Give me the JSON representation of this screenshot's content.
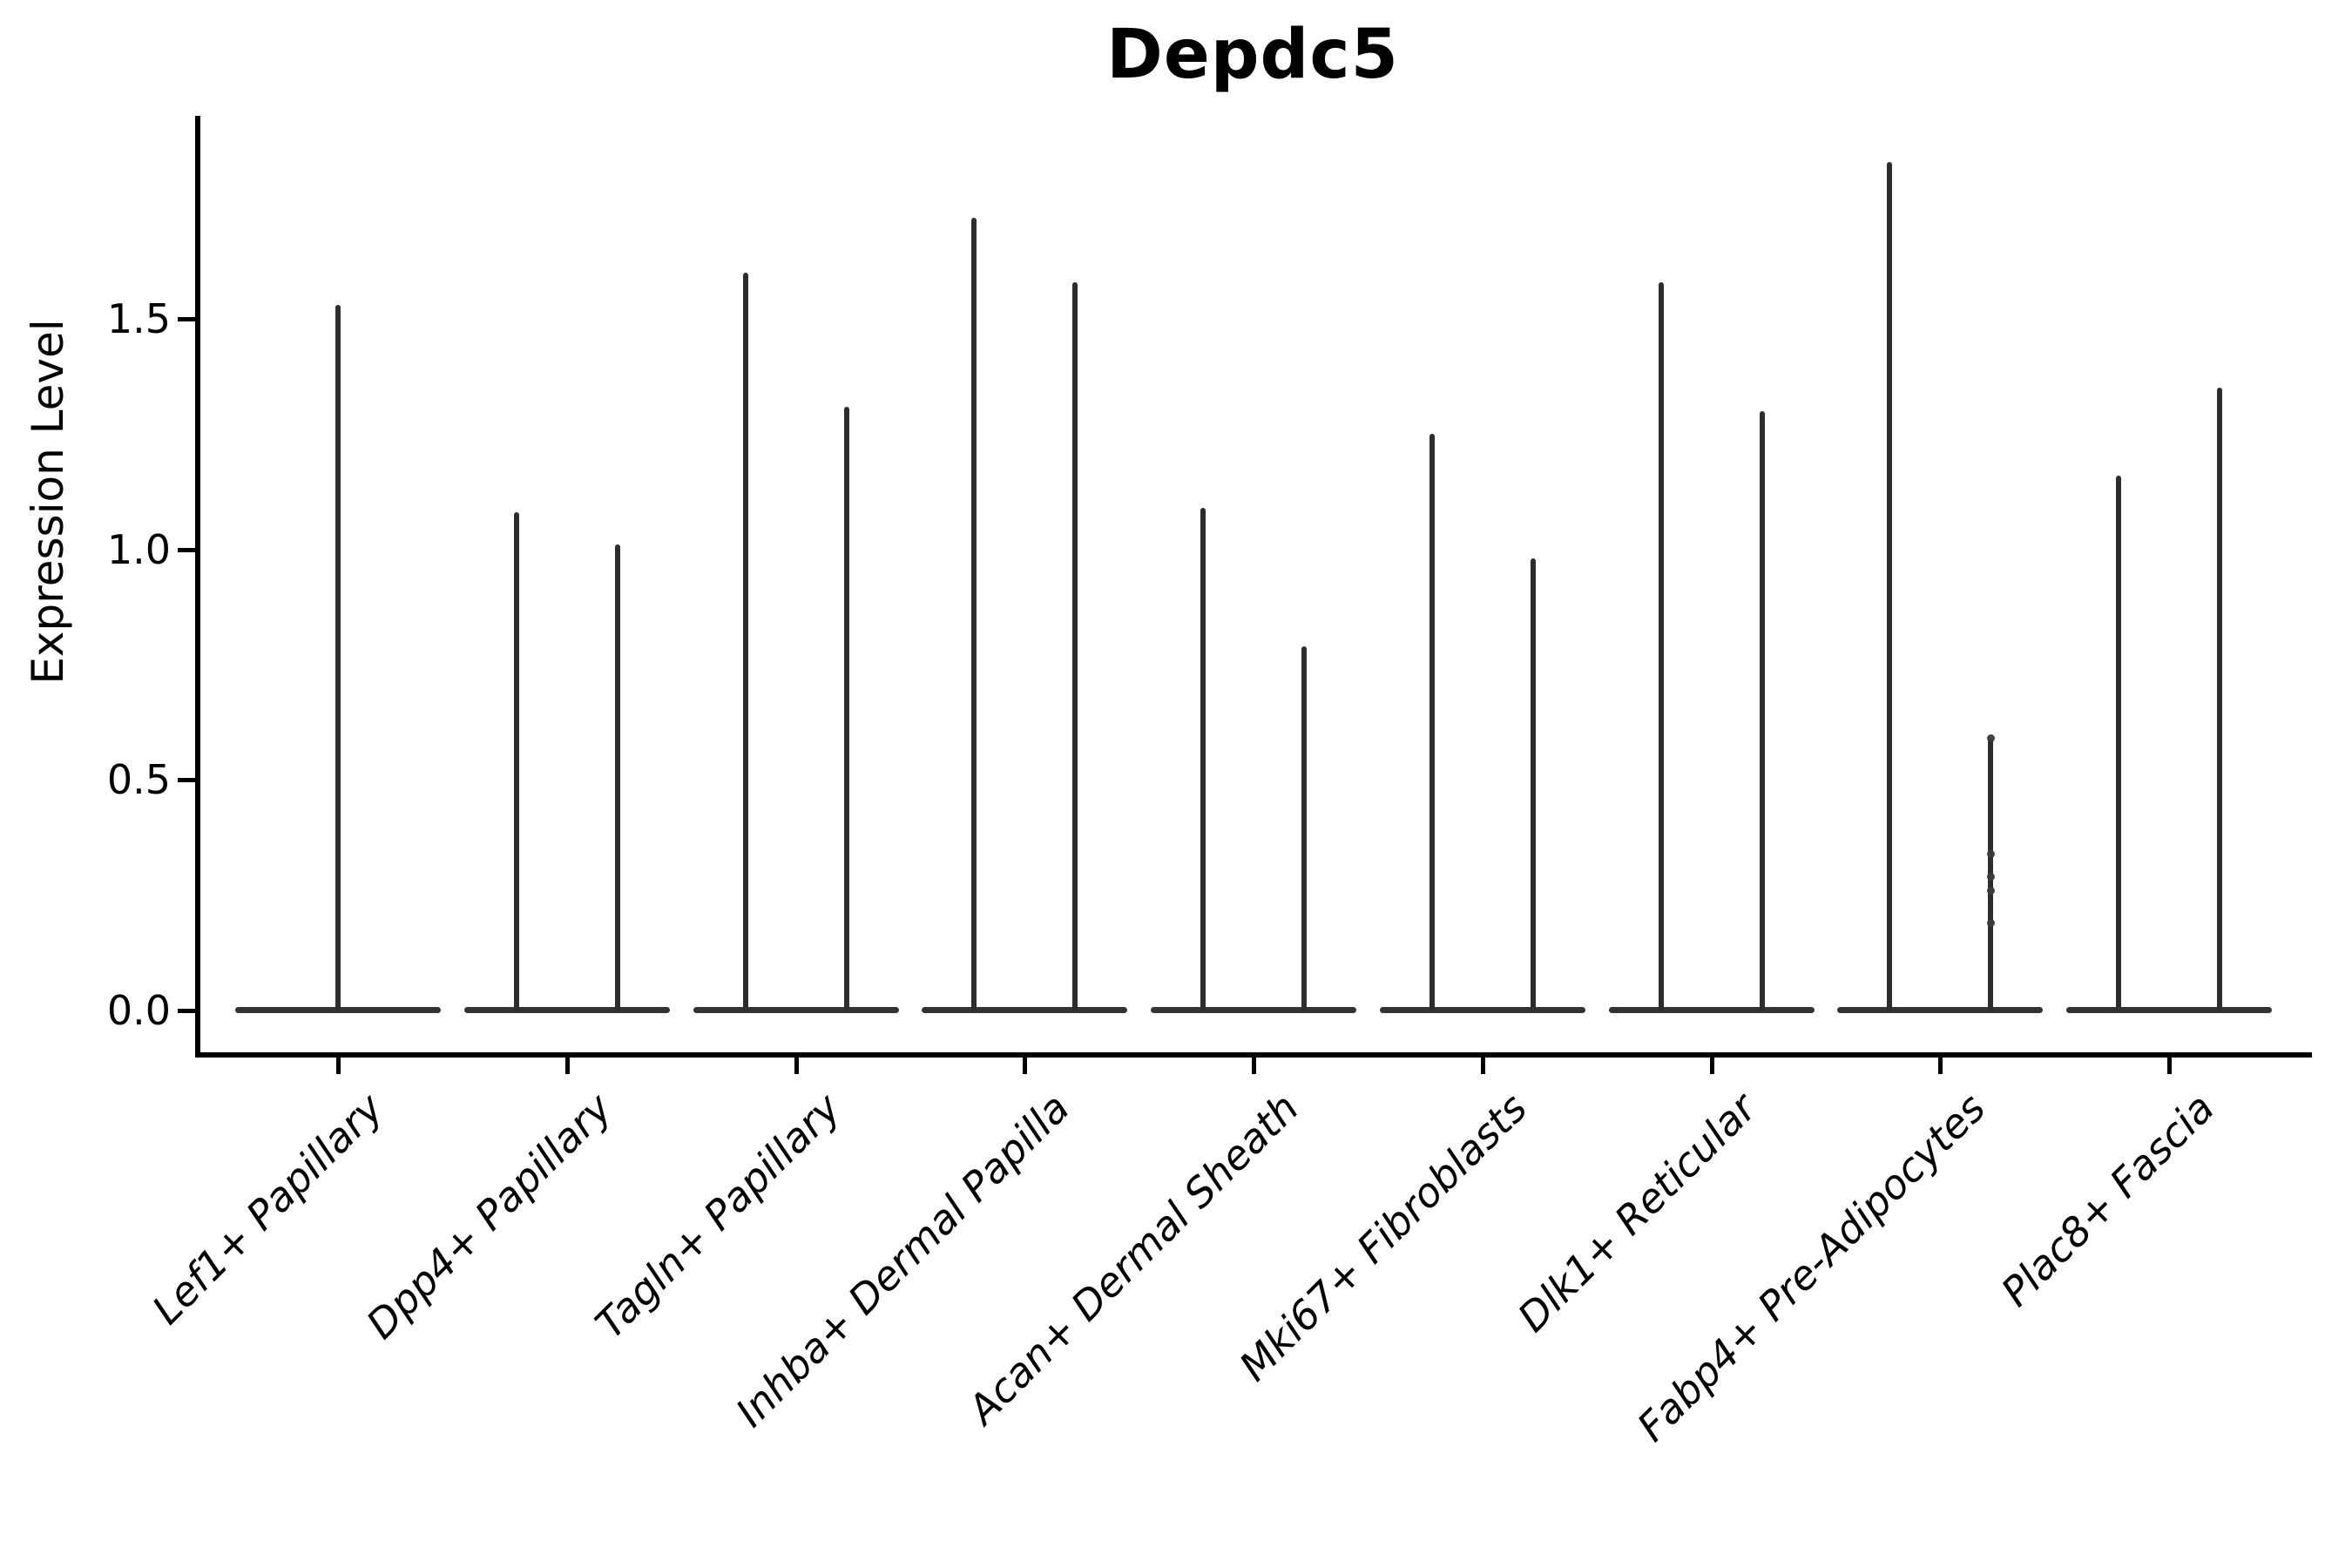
{
  "title": "Depdc5",
  "axes": {
    "y_label": "Expression Level"
  },
  "colors": {
    "violin": "#2d2d2d",
    "violin_base": "#333333",
    "jitter_point": "#3a3a3a",
    "axis": "#000000",
    "text": "#000000",
    "background": "#ffffff"
  },
  "chart_data": {
    "type": "violin",
    "title": "Depdc5",
    "xlabel": "",
    "ylabel": "Expression Level",
    "ylim": [
      0,
      1.94
    ],
    "ytick_values": [
      0.0,
      0.5,
      1.0,
      1.5
    ],
    "ytick_labels": [
      "0.0",
      "0.5",
      "1.0",
      "1.5"
    ],
    "grid": false,
    "legend": "none",
    "x_label_rotation_deg": 45,
    "categories": [
      "Lef1+ Papillary",
      "Dpp4+ Papillary",
      "Tagln+ Papillary",
      "Inhba+ Dermal Papilla",
      "Acan+ Dermal Sheath",
      "Mki67+ Fibroblasts",
      "Dlk1+ Reticular",
      "Fabp4+ Pre-Adipocytes",
      "Plac8+ Fascia"
    ],
    "description": "Violin plot of Depdc5 expression per fibroblast cluster; each category shows up to two extremely thin split violins whose mass sits at 0 with a narrow spike reaching the listed maximum expression value.",
    "series": [
      {
        "category": "Lef1+ Papillary",
        "violins": [
          {
            "max": 1.53
          }
        ]
      },
      {
        "category": "Dpp4+ Papillary",
        "violins": [
          {
            "max": 1.08
          },
          {
            "max": 1.01
          }
        ]
      },
      {
        "category": "Tagln+ Papillary",
        "violins": [
          {
            "max": 1.6
          },
          {
            "max": 1.31
          }
        ]
      },
      {
        "category": "Inhba+ Dermal Papilla",
        "violins": [
          {
            "max": 1.72
          },
          {
            "max": 1.58
          }
        ]
      },
      {
        "category": "Acan+ Dermal Sheath",
        "violins": [
          {
            "max": 1.09
          },
          {
            "max": 0.79
          }
        ]
      },
      {
        "category": "Mki67+ Fibroblasts",
        "violins": [
          {
            "max": 1.25
          },
          {
            "max": 0.98
          }
        ]
      },
      {
        "category": "Dlk1+ Reticular",
        "violins": [
          {
            "max": 1.58
          },
          {
            "max": 1.3
          }
        ]
      },
      {
        "category": "Fabp4+ Pre-Adipocytes",
        "violins": [
          {
            "max": 1.84
          },
          {
            "max": 0.59,
            "points": [
              0.59,
              0.34,
              0.29,
              0.26,
              0.19
            ]
          }
        ]
      },
      {
        "category": "Plac8+ Fascia",
        "violins": [
          {
            "max": 1.16
          },
          {
            "max": 1.35
          }
        ]
      }
    ]
  }
}
